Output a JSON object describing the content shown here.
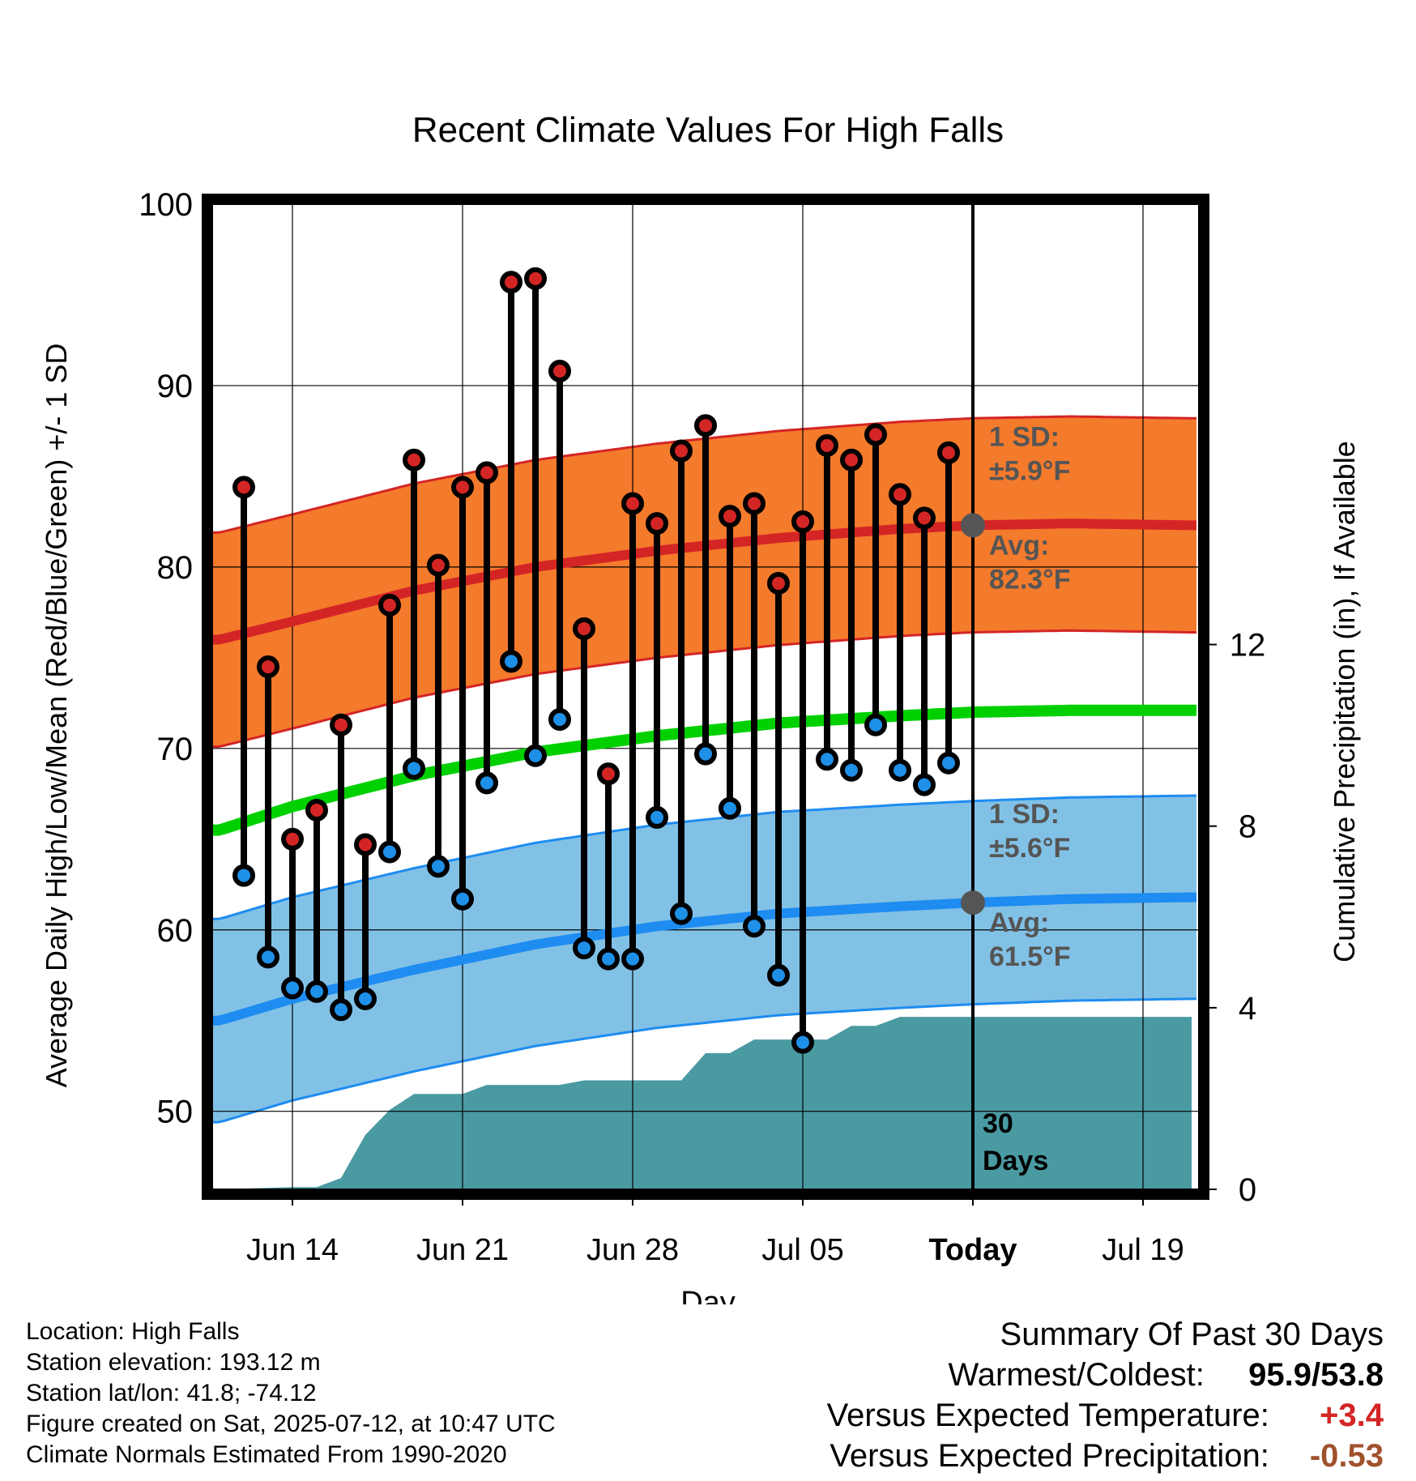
{
  "title": "Recent Climate Values For High Falls",
  "xlabel": "Day",
  "ylabel_left": "Average Daily High/Low/Mean (Red/Blue/Green) +/- 1 SD",
  "ylabel_right": "Cumulative Precipitation (in), If Available",
  "colors": {
    "high_band": "#f47a2c",
    "high_line": "#d42525",
    "low_band": "#82c1e6",
    "low_line": "#1e8cf0",
    "mean_line": "#00d000",
    "precip": "#4a9aa2",
    "high_marker": "#d42525",
    "low_marker": "#1e90e8",
    "annotation": "#555555",
    "positive": "#d42525",
    "precip_deficit": "#a0522d"
  },
  "annotations": {
    "high_sd": "1 SD:",
    "high_sd_value": "±5.9°F",
    "high_avg": "Avg:",
    "high_avg_value": "82.3°F",
    "low_sd": "1 SD:",
    "low_sd_value": "±5.6°F",
    "low_avg": "Avg:",
    "low_avg_value": "61.5°F",
    "days_num": "30",
    "days_label": "Days"
  },
  "chart_data": {
    "type": "line",
    "title": "Recent Climate Values For High Falls",
    "xlabel": "Day",
    "ylabel": "Average Daily High/Low/Mean (Red/Blue/Green) +/- 1 SD",
    "y2label": "Cumulative Precipitation (in), If Available",
    "x_ticks": [
      "Jun 14",
      "Jun 21",
      "Jun 28",
      "Jul 05",
      "Today",
      "Jul 19"
    ],
    "x_tick_days": [
      0,
      7,
      14,
      21,
      28,
      35
    ],
    "xlim_days": [
      -3.3,
      37.3
    ],
    "ylim": [
      45.7,
      100
    ],
    "y_ticks": [
      50,
      60,
      70,
      80,
      90,
      100
    ],
    "y2lim": [
      0,
      21.7
    ],
    "y2_ticks": [
      0,
      4,
      8,
      12
    ],
    "grid": true,
    "observed": {
      "days": [
        -2,
        -1,
        0,
        1,
        2,
        3,
        4,
        5,
        6,
        7,
        8,
        9,
        10,
        11,
        12,
        13,
        14,
        15,
        16,
        17,
        18,
        19,
        20,
        21,
        22,
        23,
        24,
        25,
        26,
        27
      ],
      "high": [
        84.4,
        74.5,
        65.0,
        66.6,
        71.3,
        64.7,
        77.9,
        85.9,
        80.1,
        84.4,
        85.2,
        95.7,
        95.9,
        90.8,
        76.6,
        68.6,
        83.5,
        82.4,
        86.4,
        87.8,
        82.8,
        83.5,
        79.1,
        82.5,
        86.7,
        85.9,
        87.3,
        84.0,
        82.7,
        86.3
      ],
      "low": [
        63.0,
        58.5,
        56.8,
        56.6,
        55.6,
        56.2,
        64.3,
        68.9,
        63.5,
        61.7,
        68.1,
        74.8,
        69.6,
        71.6,
        59.0,
        58.4,
        58.4,
        66.2,
        60.9,
        69.7,
        66.7,
        60.2,
        57.5,
        53.8,
        69.4,
        68.8,
        71.3,
        68.8,
        68.0,
        69.2
      ]
    },
    "normals": {
      "days": [
        -3,
        0,
        5,
        10,
        15,
        20,
        25,
        28,
        32,
        37
      ],
      "high_mean": [
        76.0,
        77.0,
        78.7,
        80.0,
        80.9,
        81.6,
        82.1,
        82.3,
        82.4,
        82.3
      ],
      "high_sd": 5.9,
      "mean": [
        65.5,
        66.8,
        68.5,
        69.8,
        70.7,
        71.4,
        71.8,
        72.0,
        72.1,
        72.1
      ],
      "low_mean": [
        55.0,
        56.2,
        57.8,
        59.2,
        60.2,
        60.9,
        61.3,
        61.5,
        61.7,
        61.8
      ],
      "low_sd": 5.6
    },
    "precip": {
      "days": [
        -3,
        0,
        1,
        2,
        3,
        4,
        5,
        6,
        7,
        8,
        10,
        11,
        12,
        14,
        16,
        17,
        18,
        19,
        20,
        21,
        22,
        23,
        24,
        25,
        26,
        27,
        28,
        37
      ],
      "cumulative": [
        0.0,
        0.05,
        0.05,
        0.25,
        1.2,
        1.75,
        2.1,
        2.1,
        2.1,
        2.3,
        2.3,
        2.3,
        2.4,
        2.4,
        2.4,
        3.0,
        3.0,
        3.3,
        3.3,
        3.3,
        3.3,
        3.6,
        3.6,
        3.8,
        3.8,
        3.8,
        3.8,
        3.8
      ]
    }
  },
  "footer_left": {
    "location": "Location: High Falls",
    "elevation": "Station elevation: 193.12 m",
    "latlon": "Station lat/lon: 41.8; -74.12",
    "created": "Figure created on Sat, 2025-07-12, at 10:47 UTC",
    "normals": "Climate Normals Estimated From 1990-2020"
  },
  "summary": {
    "heading": "Summary Of Past 30 Days",
    "warmest_label": "Warmest/Coldest:",
    "warmest_value": "95.9/53.8",
    "temp_label": "Versus Expected Temperature:",
    "temp_value": "+3.4",
    "precip_label": "Versus Expected Precipitation:",
    "precip_value": "-0.53"
  }
}
